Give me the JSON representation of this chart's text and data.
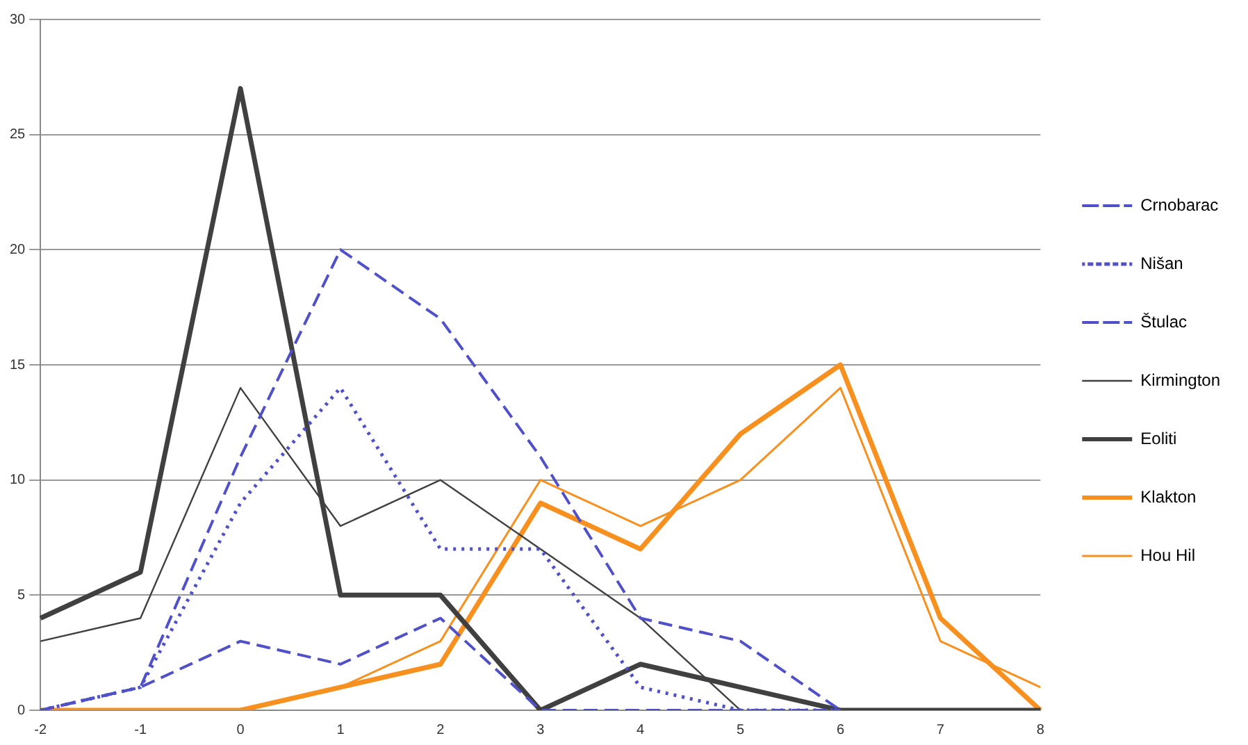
{
  "chart_data": {
    "type": "line",
    "categories": [
      "-2",
      "-1",
      "0",
      "1",
      "2",
      "3",
      "4",
      "5",
      "6",
      "7",
      "8"
    ],
    "series": [
      {
        "name": "Crnobarac",
        "color": "#5050c8",
        "line_style": "dashed",
        "values": [
          0,
          1,
          11,
          20,
          17,
          11,
          4,
          3,
          0,
          null,
          null
        ]
      },
      {
        "name": "Nišan",
        "color": "#5050c8",
        "line_style": "dotted",
        "values": [
          0,
          1,
          9,
          14,
          7,
          7,
          1,
          0,
          0,
          null,
          null
        ]
      },
      {
        "name": "Štulac",
        "color": "#5050c8",
        "line_style": "dashed",
        "values": [
          0,
          1,
          3,
          2,
          4,
          0,
          0,
          0,
          0,
          null,
          null
        ]
      },
      {
        "name": "Kirmington",
        "color": "#404040",
        "line_style": "solid",
        "values": [
          3,
          4,
          14,
          8,
          10,
          7,
          4,
          0,
          null,
          null,
          null
        ]
      },
      {
        "name": "Eoliti",
        "color": "#404040",
        "line_style": "solid",
        "values": [
          4,
          6,
          27,
          5,
          5,
          0,
          2,
          1,
          0,
          0,
          0
        ]
      },
      {
        "name": "Klakton",
        "color": "#f7901e",
        "line_style": "solid",
        "values": [
          0,
          0,
          0,
          1,
          2,
          9,
          7,
          12,
          15,
          4,
          0
        ]
      },
      {
        "name": "Hou Hil",
        "color": "#f7901e",
        "line_style": "solid",
        "values": [
          0,
          0,
          0,
          1,
          3,
          10,
          8,
          10,
          14,
          3,
          1
        ]
      }
    ],
    "ylim": [
      0,
      30
    ],
    "yticks": [
      0,
      5,
      10,
      15,
      20,
      25,
      30
    ],
    "grid": "y",
    "legend": "right",
    "marker": "none"
  }
}
